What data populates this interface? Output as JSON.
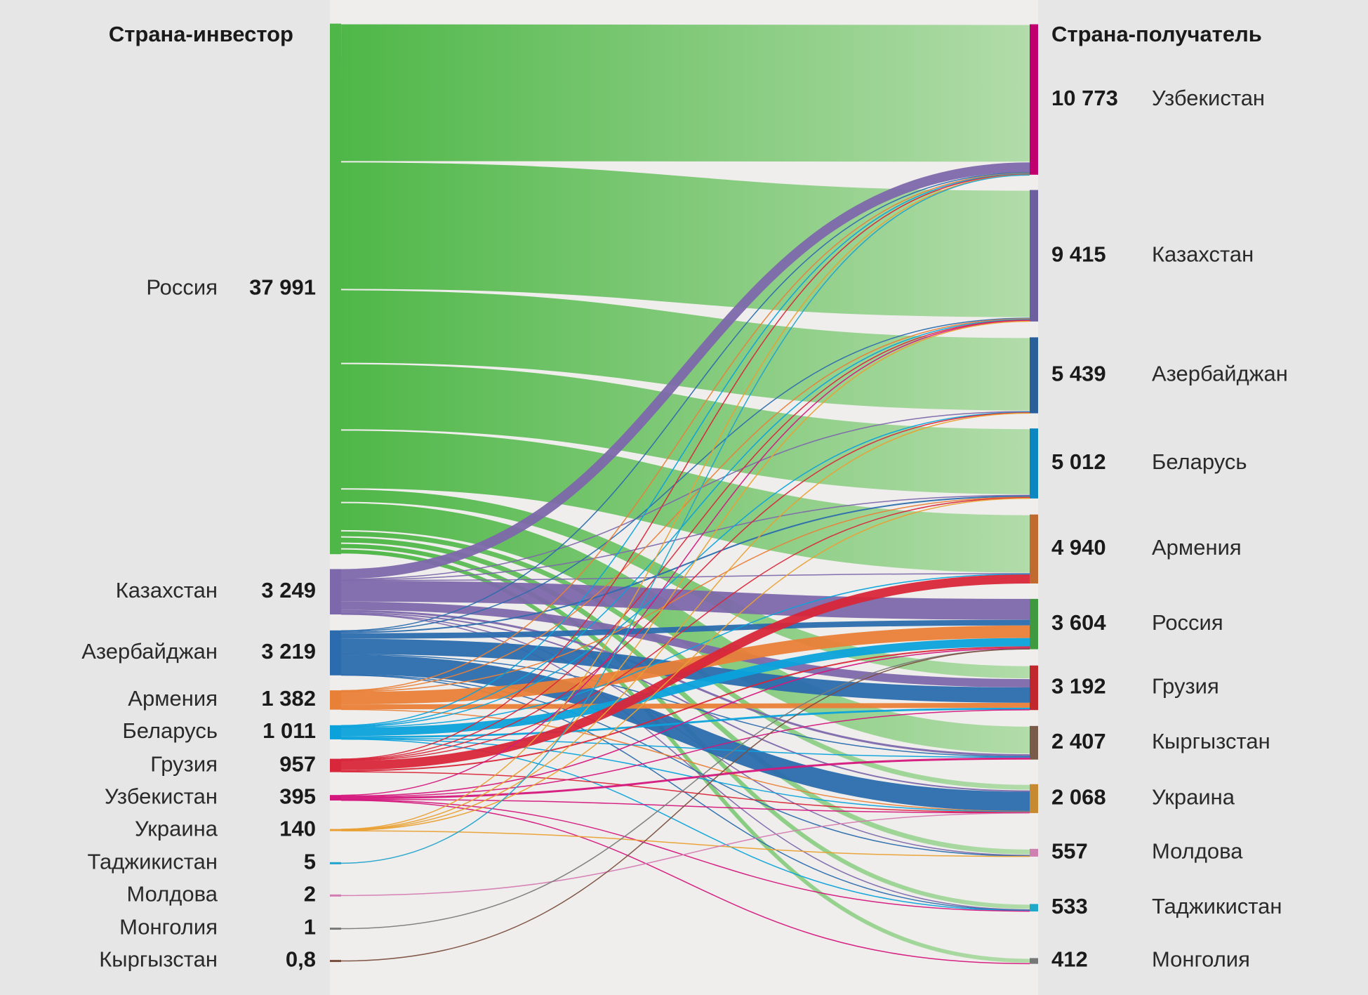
{
  "chart_data": {
    "type": "sankey",
    "source_header": "Страна-инвестор",
    "target_header": "Страна-получатель",
    "sources": {
      "names": [
        "Россия",
        "Казахстан",
        "Азербайджан",
        "Армения",
        "Беларусь",
        "Грузия",
        "Узбекистан",
        "Украина",
        "Таджикистан",
        "Молдова",
        "Монголия",
        "Кыргызстан"
      ],
      "values": [
        37991,
        3249,
        3219,
        1382,
        1011,
        957,
        395,
        140,
        5,
        2,
        1,
        0.8
      ],
      "value_labels": [
        "37 991",
        "3 249",
        "3 219",
        "1 382",
        "1 011",
        "957",
        "395",
        "140",
        "5",
        "2",
        "1",
        "0,8"
      ],
      "colors": [
        "#4fb748",
        "#7d68ab",
        "#2b6bae",
        "#e98038",
        "#0ba2dc",
        "#d8263a",
        "#d4177d",
        "#e9a033",
        "#22a3cc",
        "#d47bb2",
        "#7a7a7a",
        "#7b4e3e"
      ]
    },
    "targets": {
      "names": [
        "Узбекистан",
        "Казахстан",
        "Азербайджан",
        "Беларусь",
        "Армения",
        "Россия",
        "Грузия",
        "Кыргызстан",
        "Украина",
        "Молдова",
        "Таджикистан",
        "Монголия"
      ],
      "values": [
        10773,
        9415,
        5439,
        5012,
        4940,
        3604,
        3192,
        2407,
        2068,
        557,
        533,
        412
      ],
      "value_labels": [
        "10 773",
        "9 415",
        "5 439",
        "5 012",
        "4 940",
        "3 604",
        "3 192",
        "2 407",
        "2 068",
        "557",
        "533",
        "412"
      ],
      "colors": [
        "#c0006f",
        "#6c5fa0",
        "#2a5f9a",
        "#0a86c0",
        "#c06a30",
        "#3f9a3f",
        "#c0282e",
        "#7a5a48",
        "#c88a30",
        "#d080b0",
        "#20a8c8",
        "#777777"
      ]
    },
    "links": {
      "source": [
        0,
        0,
        0,
        0,
        0,
        0,
        0,
        0,
        0,
        0,
        0,
        1,
        1,
        1,
        1,
        1,
        1,
        1,
        1,
        1,
        1,
        2,
        2,
        2,
        2,
        2,
        2,
        2,
        2,
        2,
        3,
        3,
        3,
        3,
        3,
        3,
        4,
        4,
        4,
        4,
        4,
        4,
        4,
        4,
        4,
        5,
        5,
        5,
        5,
        5,
        5,
        5,
        6,
        6,
        6,
        6,
        6,
        6,
        6,
        7,
        7,
        7,
        7,
        7,
        8,
        9,
        10,
        11
      ],
      "target": [
        0,
        1,
        2,
        3,
        4,
        6,
        7,
        8,
        9,
        10,
        11,
        0,
        2,
        3,
        4,
        5,
        6,
        7,
        8,
        9,
        10,
        0,
        1,
        3,
        5,
        6,
        7,
        8,
        9,
        10,
        0,
        1,
        3,
        5,
        6,
        8,
        0,
        1,
        2,
        4,
        5,
        6,
        7,
        8,
        10,
        0,
        1,
        2,
        3,
        4,
        5,
        8,
        1,
        5,
        6,
        7,
        8,
        10,
        11,
        0,
        1,
        2,
        3,
        9,
        0,
        8,
        5,
        5
      ],
      "values": [
        9891,
        9155,
        5289,
        4762,
        4219,
        972,
        2027,
        442,
        449,
        403,
        382,
        700,
        50,
        50,
        30,
        1500,
        600,
        150,
        100,
        39,
        30,
        50,
        50,
        100,
        400,
        1100,
        50,
        1400,
        39,
        30,
        40,
        40,
        30,
        900,
        350,
        22,
        40,
        60,
        40,
        41,
        600,
        140,
        30,
        30,
        30,
        40,
        40,
        40,
        40,
        650,
        100,
        47,
        40,
        80,
        30,
        150,
        25,
        40,
        30,
        30,
        30,
        20,
        30,
        30,
        5,
        2,
        1,
        0.8
      ],
      "fade_source": 0,
      "fade_color": "#b2dcaa"
    }
  }
}
